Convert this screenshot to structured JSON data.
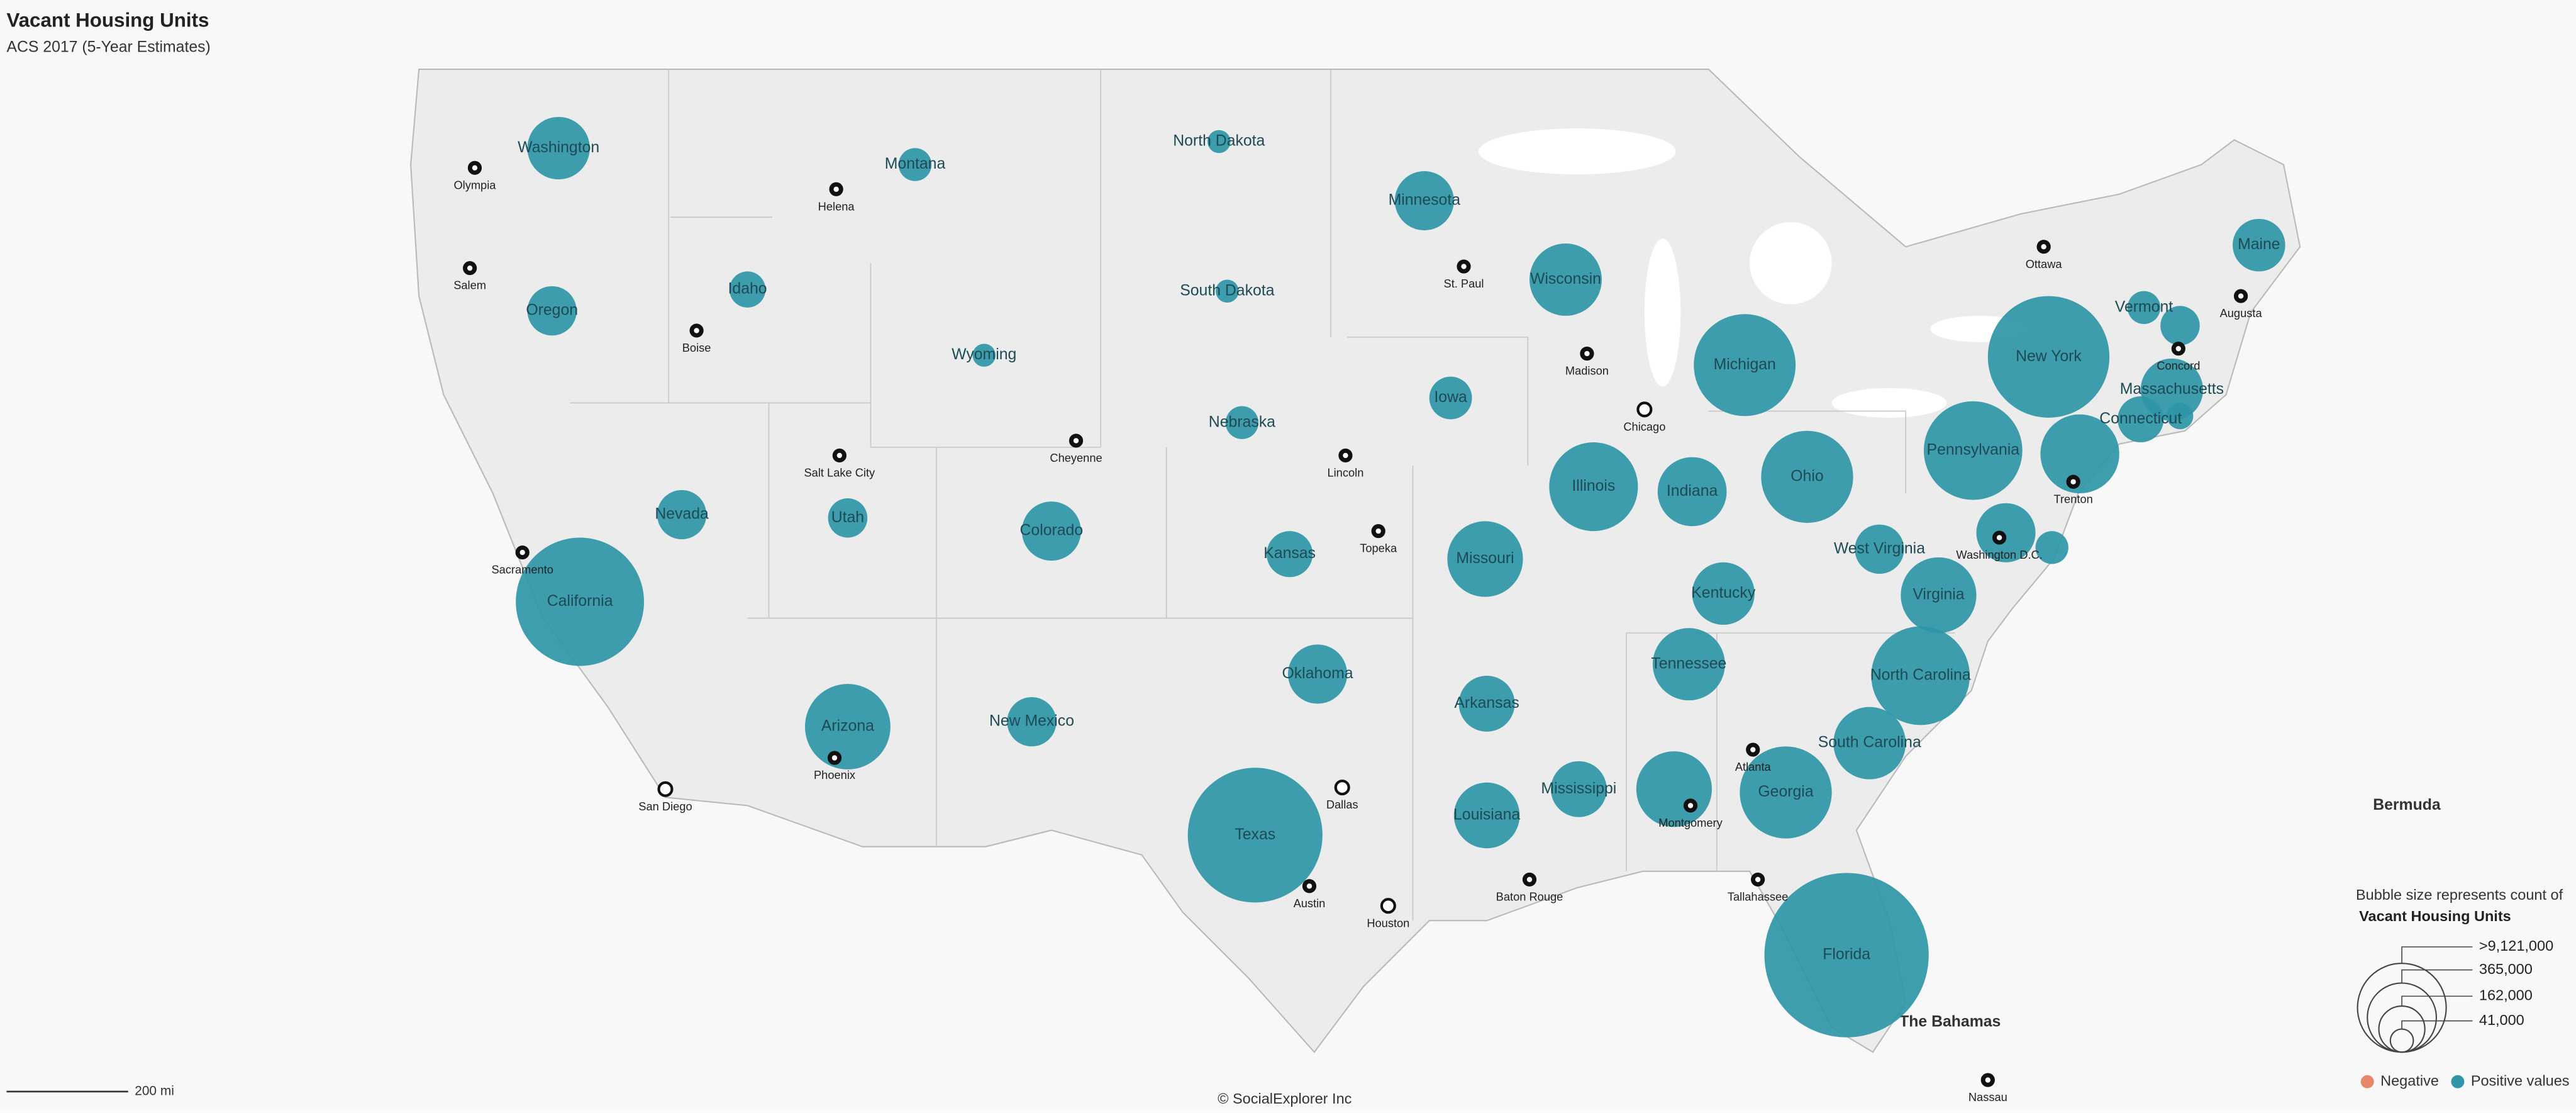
{
  "title": "Vacant Housing Units",
  "subtitle": "ACS 2017 (5-Year Estimates)",
  "states": {
    "names": [
      "Washington",
      "Oregon",
      "Idaho",
      "Montana",
      "Wyoming",
      "Nevada",
      "Utah",
      "California",
      "Arizona",
      "Colorado",
      "New Mexico",
      "North Dakota",
      "South Dakota",
      "Nebraska",
      "Kansas",
      "Oklahoma",
      "Texas",
      "Minnesota",
      "Iowa",
      "Missouri",
      "Arkansas",
      "Louisiana",
      "Wisconsin",
      "Illinois",
      "Michigan",
      "Indiana",
      "Ohio",
      "Kentucky",
      "Tennessee",
      "Mississippi",
      null,
      "Georgia",
      "Florida",
      "South Carolina",
      "North Carolina",
      "Virginia",
      "West Virginia",
      "Pennsylvania",
      "New York",
      "Vermont",
      null,
      "Maine",
      "Massachusetts",
      "Connecticut",
      null,
      null,
      null,
      null
    ],
    "values": [
      302000,
      188000,
      101000,
      84000,
      41000,
      188000,
      120000,
      1273000,
      566000,
      271000,
      188000,
      41000,
      41000,
      84000,
      164000,
      271000,
      1406000,
      271000,
      141000,
      443000,
      242000,
      335000,
      405000,
      610000,
      804000,
      369000,
      656000,
      302000,
      405000,
      242000,
      443000,
      656000,
      2092000,
      405000,
      753000,
      443000,
      188000,
      753000,
      1145000,
      84000,
      120000,
      214000,
      302000,
      164000,
      54000,
      482000,
      84000,
      271000
    ],
    "color": "#2e96a6"
  },
  "cities": [
    "Olympia",
    "Salem",
    "Helena",
    "Boise",
    "Salt Lake City",
    "Cheyenne",
    "Sacramento",
    "San Diego",
    "Phoenix",
    "Lincoln",
    "Topeka",
    "Dallas",
    "Austin",
    "Houston",
    "St. Paul",
    "Madison",
    "Chicago",
    "Baton Rouge",
    "Atlanta",
    "Montgomery",
    "Tallahassee",
    "Trenton",
    "Washington D.C.",
    "Concord",
    "Augusta",
    "Ottawa",
    "Nassau"
  ],
  "places": [
    "Bermuda",
    "The Bahamas"
  ],
  "scale_label": "200 mi",
  "credit": "© SocialExplorer Inc",
  "legend": {
    "title": "Bubble size represents count of",
    "measure": "Vacant Housing Units",
    "sizes": [
      ">9,121,000",
      "365,000",
      "162,000",
      "41,000"
    ],
    "negative": "Negative",
    "positive": "Positive values",
    "negative_color": "#e8866a"
  }
}
